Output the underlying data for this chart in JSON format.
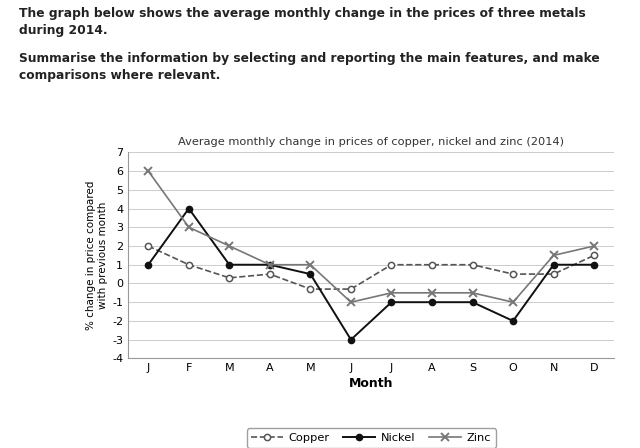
{
  "title": "Average monthly change in prices of copper, nickel and zinc (2014)",
  "header_bold1": "The graph below shows the average monthly change in the prices of three metals\nduring 2014.",
  "header_bold2": "Summarise the information by selecting and reporting the main features, and make\ncomparisons where relevant.",
  "xlabel": "Month",
  "ylabel": "% change in price compared\nwith previous month",
  "months": [
    "J",
    "F",
    "M",
    "A",
    "M",
    "J",
    "J",
    "A",
    "S",
    "O",
    "N",
    "D"
  ],
  "copper": [
    2.0,
    1.0,
    0.3,
    0.5,
    -0.3,
    -0.3,
    1.0,
    1.0,
    1.0,
    0.5,
    0.5,
    1.5
  ],
  "nickel": [
    1.0,
    4.0,
    1.0,
    1.0,
    0.5,
    -3.0,
    -1.0,
    -1.0,
    -1.0,
    -2.0,
    1.0,
    1.0
  ],
  "zinc": [
    6.0,
    3.0,
    2.0,
    1.0,
    1.0,
    -1.0,
    -0.5,
    -0.5,
    -0.5,
    -1.0,
    1.5,
    2.0
  ],
  "ylim": [
    -4,
    7
  ],
  "yticks": [
    -4,
    -3,
    -2,
    -1,
    0,
    1,
    2,
    3,
    4,
    5,
    6,
    7
  ],
  "copper_color": "#555555",
  "nickel_color": "#111111",
  "zinc_color": "#777777",
  "background_color": "#ffffff",
  "grid_color": "#cccccc"
}
